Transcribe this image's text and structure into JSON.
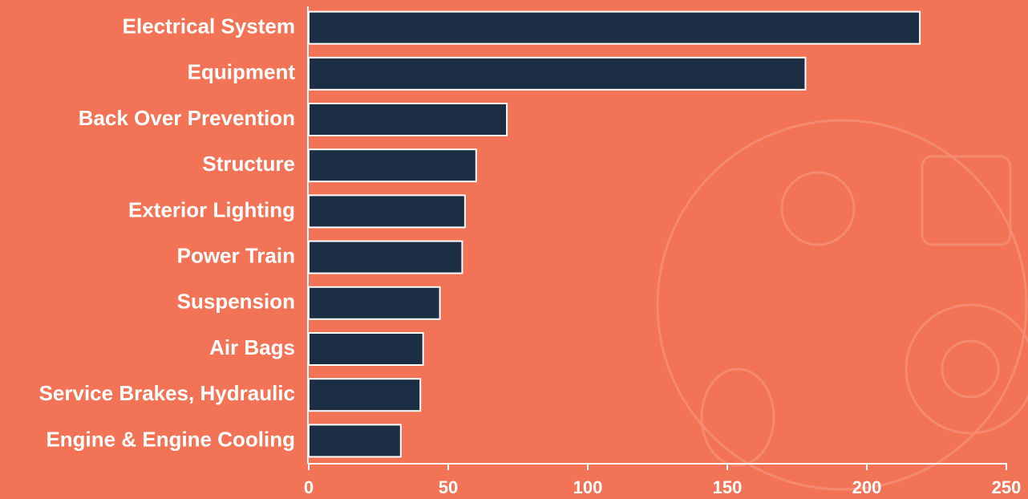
{
  "chart_data": {
    "type": "hbar",
    "categories": [
      "Electrical System",
      "Equipment",
      "Back Over Prevention",
      "Structure",
      "Exterior Lighting",
      "Power Train",
      "Suspension",
      "Air Bags",
      "Service Brakes, Hydraulic",
      "Engine & Engine Cooling"
    ],
    "values": [
      219,
      178,
      71,
      60,
      56,
      55,
      47,
      41,
      40,
      33
    ],
    "color": "#1b2e44",
    "xlim": [
      0,
      250
    ],
    "xticks": [
      0,
      50,
      100,
      150,
      200,
      250
    ]
  }
}
